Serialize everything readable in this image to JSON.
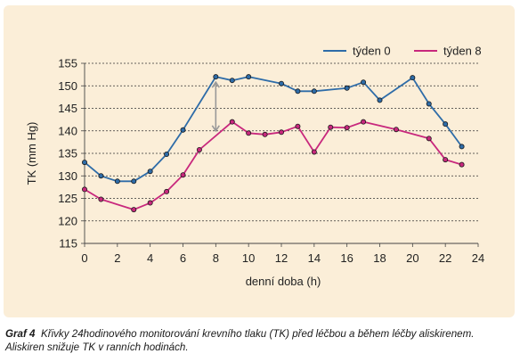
{
  "chart_data": {
    "type": "line",
    "title": "",
    "xlabel": "denní doba (h)",
    "ylabel": "TK (mm Hg)",
    "xlim": [
      0,
      24
    ],
    "ylim": [
      115,
      155
    ],
    "xticks": [
      "0",
      "2",
      "4",
      "6",
      "8",
      "10",
      "12",
      "14",
      "16",
      "18",
      "20",
      "22",
      "24"
    ],
    "yticks": [
      "115",
      "120",
      "125",
      "130",
      "135",
      "140",
      "145",
      "150",
      "155"
    ],
    "grid": "horizontal-dotted",
    "legend_position": "top-right",
    "series": [
      {
        "name": "týden 0",
        "color": "#2e6ca8",
        "x": [
          0,
          1,
          2,
          3,
          4,
          5,
          6,
          8,
          9,
          10,
          12,
          13,
          14,
          16,
          17,
          18,
          20,
          21,
          22,
          23
        ],
        "y": [
          133,
          130,
          128.8,
          128.8,
          131,
          134.8,
          140.2,
          152,
          151.2,
          152,
          150.5,
          148.8,
          148.8,
          149.5,
          150.8,
          146.8,
          151.8,
          146,
          141.5,
          136.5
        ]
      },
      {
        "name": "týden 8",
        "color": "#c8287d",
        "x": [
          0,
          1,
          3,
          4,
          5,
          6,
          7,
          9,
          10,
          11,
          12,
          13,
          14,
          15,
          16,
          17,
          19,
          21,
          22,
          23
        ],
        "y": [
          127,
          124.8,
          122.5,
          124,
          126.5,
          130.2,
          135.8,
          142,
          139.5,
          139.2,
          139.7,
          141,
          135.3,
          140.8,
          140.7,
          142,
          140.3,
          138.3,
          133.6,
          132.5
        ]
      }
    ],
    "annotations": [
      {
        "type": "double-arrow",
        "x": 8,
        "y_from": 139,
        "y_to": 152
      }
    ]
  },
  "caption": {
    "lead": "Graf 4",
    "text": "Křivky 24hodinového monitorování krevního tlaku (TK) před léčbou a během léčby aliskirenem. Aliskiren snižuje TK v ranních hodinách."
  }
}
